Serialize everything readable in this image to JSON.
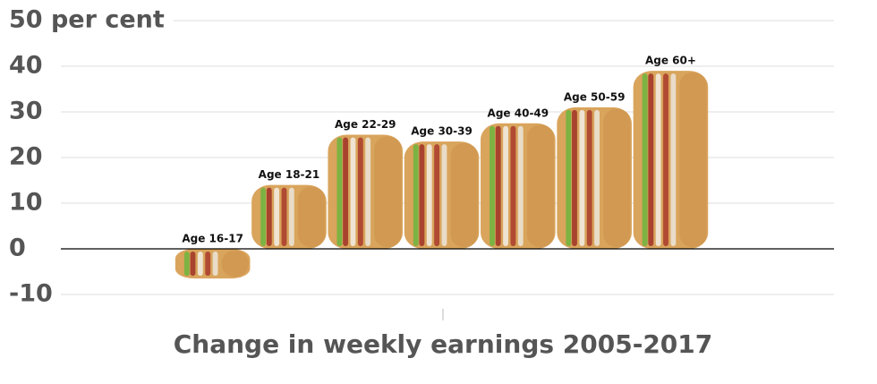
{
  "chart_data": {
    "type": "bar",
    "x_label": "Change in weekly earnings 2005-2017",
    "categories": [
      "Age 16-17",
      "Age 18-21",
      "Age 22-29",
      "Age 30-39",
      "Age 40-49",
      "Age 50-59",
      "Age 60+"
    ],
    "values": [
      -6.5,
      14,
      25,
      23.5,
      27.5,
      31,
      39
    ],
    "color": "#d9a45c",
    "ylim": [
      -10,
      50
    ],
    "yticks": [
      -10,
      0,
      10,
      20,
      30,
      40,
      {
        "value": 50,
        "label": "50 per cent"
      }
    ],
    "grid": true
  }
}
